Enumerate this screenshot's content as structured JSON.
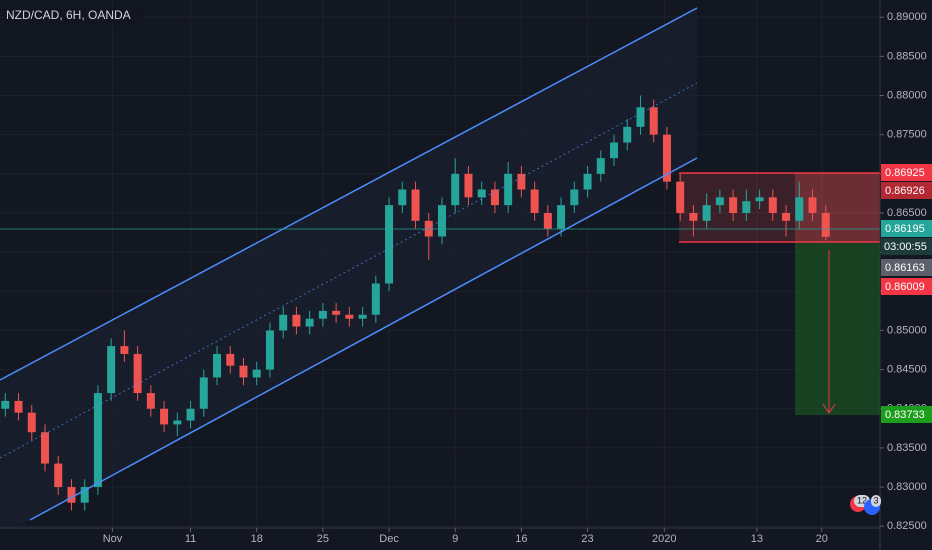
{
  "chart_data": {
    "type": "candlestick",
    "title": "NZD/CAD, 6H, OANDA",
    "open": [
      0.84,
      0.841,
      0.8395,
      0.837,
      0.833,
      0.83,
      0.828,
      0.83,
      0.842,
      0.848,
      0.847,
      0.842,
      0.84,
      0.838,
      0.8385,
      0.84,
      0.844,
      0.847,
      0.8455,
      0.844,
      0.845,
      0.85,
      0.852,
      0.8505,
      0.8515,
      0.8525,
      0.852,
      0.8515,
      0.852,
      0.856,
      0.866,
      0.868,
      0.864,
      0.862,
      0.866,
      0.87,
      0.867,
      0.868,
      0.866,
      0.87,
      0.868,
      0.865,
      0.863,
      0.866,
      0.868,
      0.87,
      0.872,
      0.874,
      0.876,
      0.8785,
      0.875,
      0.869,
      0.865,
      0.864,
      0.866,
      0.867,
      0.865,
      0.8665,
      0.867,
      0.865,
      0.864,
      0.867,
      0.865
    ],
    "high": [
      0.842,
      0.842,
      0.8405,
      0.838,
      0.834,
      0.831,
      0.831,
      0.843,
      0.849,
      0.85,
      0.848,
      0.843,
      0.841,
      0.8395,
      0.841,
      0.845,
      0.848,
      0.848,
      0.8465,
      0.846,
      0.851,
      0.853,
      0.853,
      0.8525,
      0.8535,
      0.8535,
      0.853,
      0.853,
      0.857,
      0.867,
      0.869,
      0.869,
      0.865,
      0.867,
      0.872,
      0.871,
      0.869,
      0.869,
      0.8715,
      0.871,
      0.869,
      0.866,
      0.867,
      0.869,
      0.871,
      0.873,
      0.875,
      0.877,
      0.88,
      0.8795,
      0.876,
      0.87,
      0.866,
      0.8675,
      0.868,
      0.868,
      0.868,
      0.868,
      0.868,
      0.866,
      0.869,
      0.868,
      0.866
    ],
    "low": [
      0.839,
      0.8385,
      0.836,
      0.832,
      0.829,
      0.827,
      0.827,
      0.829,
      0.841,
      0.846,
      0.841,
      0.839,
      0.837,
      0.8365,
      0.8375,
      0.839,
      0.843,
      0.8445,
      0.843,
      0.843,
      0.844,
      0.849,
      0.8495,
      0.8495,
      0.8505,
      0.851,
      0.8505,
      0.8505,
      0.851,
      0.855,
      0.865,
      0.863,
      0.859,
      0.861,
      0.865,
      0.866,
      0.866,
      0.865,
      0.865,
      0.867,
      0.864,
      0.862,
      0.862,
      0.865,
      0.867,
      0.869,
      0.871,
      0.873,
      0.875,
      0.874,
      0.868,
      0.864,
      0.862,
      0.863,
      0.865,
      0.864,
      0.864,
      0.8655,
      0.864,
      0.862,
      0.863,
      0.864,
      0.8615
    ],
    "close": [
      0.841,
      0.8395,
      0.837,
      0.833,
      0.83,
      0.828,
      0.83,
      0.842,
      0.848,
      0.847,
      0.842,
      0.84,
      0.838,
      0.8385,
      0.84,
      0.844,
      0.847,
      0.8455,
      0.844,
      0.845,
      0.85,
      0.852,
      0.8505,
      0.8515,
      0.8525,
      0.852,
      0.8515,
      0.852,
      0.856,
      0.866,
      0.868,
      0.864,
      0.862,
      0.866,
      0.87,
      0.867,
      0.868,
      0.866,
      0.87,
      0.868,
      0.865,
      0.863,
      0.866,
      0.868,
      0.87,
      0.872,
      0.874,
      0.876,
      0.8785,
      0.875,
      0.869,
      0.865,
      0.864,
      0.866,
      0.867,
      0.865,
      0.8665,
      0.867,
      0.865,
      0.864,
      0.867,
      0.865,
      0.86195
    ],
    "up_color": "#26a69a",
    "down_color": "#ef5350",
    "xlim": [
      -0.4,
      66.1
    ],
    "ylim": [
      0.8226,
      0.8922
    ],
    "xticks": [
      {
        "value": 8.1,
        "label": "Nov"
      },
      {
        "value": 14,
        "label": "11"
      },
      {
        "value": 19,
        "label": "18"
      },
      {
        "value": 24,
        "label": "25"
      },
      {
        "value": 29,
        "label": "Dec"
      },
      {
        "value": 34,
        "label": "9"
      },
      {
        "value": 39,
        "label": "16"
      },
      {
        "value": 44,
        "label": "23"
      },
      {
        "value": 49.8,
        "label": "2020"
      },
      {
        "value": 56.8,
        "label": "13"
      },
      {
        "value": 61.7,
        "label": "20"
      }
    ],
    "yticks": [
      {
        "value": 0.825,
        "label": "0.82500"
      },
      {
        "value": 0.83,
        "label": "0.83000"
      },
      {
        "value": 0.835,
        "label": "0.83500"
      },
      {
        "value": 0.84,
        "label": "0.84000"
      },
      {
        "value": 0.845,
        "label": "0.84500"
      },
      {
        "value": 0.85,
        "label": "0.85000"
      },
      {
        "value": 0.855,
        "label": "0.85500"
      },
      {
        "value": 0.86,
        "label": "0.86000"
      },
      {
        "value": 0.865,
        "label": "0.86500"
      },
      {
        "value": 0.87,
        "label": "0.87000"
      },
      {
        "value": 0.875,
        "label": "0.87500"
      },
      {
        "value": 0.88,
        "label": "0.88000"
      },
      {
        "value": 0.885,
        "label": "0.88500"
      },
      {
        "value": 0.89,
        "label": "0.89000"
      }
    ],
    "grid": true,
    "price_labels": [
      "0.86925",
      "0.86926",
      "0.86195",
      "03:00:55",
      "0.86163",
      "0.86009",
      "0.83733"
    ],
    "badges": [
      "12",
      "3"
    ]
  }
}
